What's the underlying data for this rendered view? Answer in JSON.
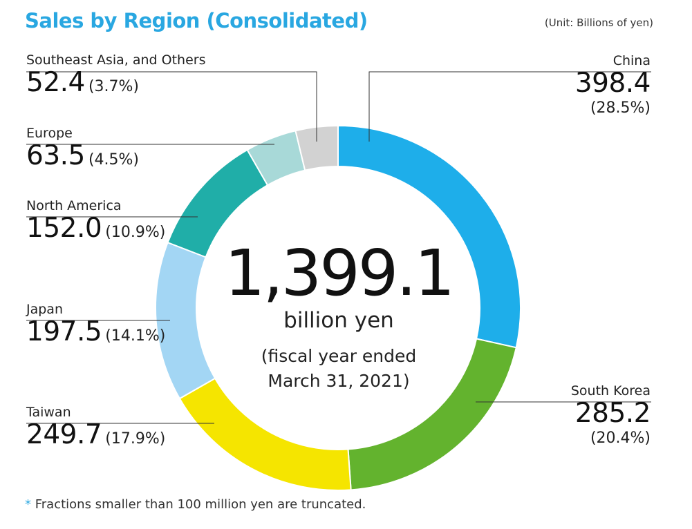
{
  "title": "Sales by Region (Consolidated)",
  "unit_note": "(Unit: Billions of yen)",
  "center": {
    "total": "1,399.1",
    "unit": "billion yen",
    "period_line1": "(fiscal year ended",
    "period_line2": "March 31, 2021)"
  },
  "footnote": {
    "star": "*",
    "text": "Fractions smaller than 100 million yen are truncated."
  },
  "colors": {
    "title": "#29a7e1",
    "China": "#1eaeea",
    "South Korea": "#63b32e",
    "Taiwan": "#f5e500",
    "Japan": "#a3d6f4",
    "North America": "#20aea8",
    "Europe": "#a8d9d8",
    "Southeast Asia, and Others": "#d2d2d2"
  },
  "chart_data": {
    "type": "pie",
    "subtype": "donut",
    "title": "Sales by Region (Consolidated)",
    "unit": "Billions of yen",
    "total": 1399.1,
    "slices": [
      {
        "name": "China",
        "value": 398.4,
        "percent": 28.5,
        "value_label": "398.4",
        "pct_label": "(28.5%)"
      },
      {
        "name": "South Korea",
        "value": 285.2,
        "percent": 20.4,
        "value_label": "285.2",
        "pct_label": "(20.4%)"
      },
      {
        "name": "Taiwan",
        "value": 249.7,
        "percent": 17.9,
        "value_label": "249.7",
        "pct_label": "(17.9%)"
      },
      {
        "name": "Japan",
        "value": 197.5,
        "percent": 14.1,
        "value_label": "197.5",
        "pct_label": "(14.1%)"
      },
      {
        "name": "North America",
        "value": 152.0,
        "percent": 10.9,
        "value_label": "152.0",
        "pct_label": "(10.9%)"
      },
      {
        "name": "Europe",
        "value": 63.5,
        "percent": 4.5,
        "value_label": "63.5",
        "pct_label": "(4.5%)"
      },
      {
        "name": "Southeast Asia, and Others",
        "value": 52.4,
        "percent": 3.7,
        "value_label": "52.4",
        "pct_label": "(3.7%)"
      }
    ]
  }
}
